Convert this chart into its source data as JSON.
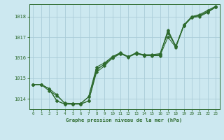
{
  "title": "Graphe pression niveau de la mer (hPa)",
  "bg_color": "#cce8f0",
  "line_color": "#2d6a2d",
  "grid_color": "#aaccd8",
  "xlim": [
    -0.5,
    23.5
  ],
  "ylim": [
    1013.5,
    1018.6
  ],
  "yticks": [
    1014,
    1015,
    1016,
    1017,
    1018
  ],
  "xticks": [
    0,
    1,
    2,
    3,
    4,
    5,
    6,
    7,
    8,
    9,
    10,
    11,
    12,
    13,
    14,
    15,
    16,
    17,
    18,
    19,
    20,
    21,
    22,
    23
  ],
  "series": [
    [
      1014.7,
      1014.7,
      1014.5,
      1013.9,
      1013.75,
      1013.75,
      1013.75,
      1013.9,
      1015.3,
      1015.6,
      1016.0,
      1016.2,
      1016.05,
      1016.2,
      1016.1,
      1016.1,
      1016.1,
      1017.0,
      1016.5,
      1017.55,
      1017.95,
      1018.0,
      1018.2,
      1018.45
    ],
    [
      1014.7,
      1014.7,
      1014.4,
      1014.15,
      1013.8,
      1013.78,
      1013.78,
      1014.1,
      1015.55,
      1015.75,
      1016.05,
      1016.22,
      1016.05,
      1016.22,
      1016.15,
      1016.15,
      1016.2,
      1017.2,
      1016.55,
      1017.6,
      1018.0,
      1018.1,
      1018.3,
      1018.5
    ],
    [
      1014.7,
      1014.7,
      1014.5,
      1013.9,
      1013.75,
      1013.75,
      1013.75,
      1013.9,
      1015.4,
      1015.7,
      1016.05,
      1016.25,
      1016.05,
      1016.25,
      1016.12,
      1016.12,
      1016.12,
      1017.35,
      1016.55,
      1017.58,
      1017.98,
      1018.05,
      1018.25,
      1018.48
    ],
    [
      1014.7,
      1014.7,
      1014.5,
      1014.2,
      1013.77,
      1013.77,
      1013.77,
      1014.1,
      1015.45,
      1015.67,
      1015.97,
      1016.2,
      1016.03,
      1016.2,
      1016.12,
      1016.12,
      1016.17,
      1017.27,
      1016.57,
      1017.55,
      1017.97,
      1018.05,
      1018.23,
      1018.46
    ]
  ]
}
